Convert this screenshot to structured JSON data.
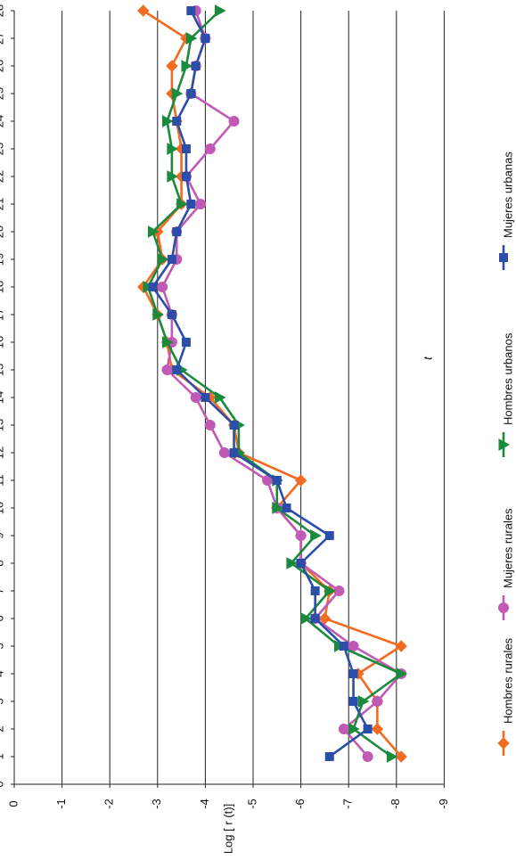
{
  "chart_data": {
    "type": "line",
    "xlabel": "t",
    "ylabel": "Log [ r (t)]",
    "x": [
      1,
      2,
      3,
      4,
      5,
      6,
      7,
      8,
      9,
      10,
      11,
      12,
      13,
      14,
      15,
      16,
      17,
      18,
      19,
      20,
      21,
      22,
      23,
      24,
      25,
      26,
      27,
      28
    ],
    "xlim": [
      0,
      28
    ],
    "ylim": [
      0,
      -9
    ],
    "x_ticks": [
      0,
      1,
      2,
      3,
      4,
      5,
      6,
      7,
      8,
      9,
      10,
      11,
      12,
      13,
      14,
      15,
      16,
      17,
      18,
      19,
      20,
      21,
      22,
      23,
      24,
      25,
      26,
      27,
      28
    ],
    "y_ticks": [
      0,
      -1,
      -2,
      -3,
      -4,
      -5,
      -6,
      -7,
      -8,
      -9
    ],
    "y_tick_labels": [
      "0",
      "-1",
      "-2",
      "-3",
      "-4",
      "-5",
      "-6",
      "-7",
      "-8",
      "-9"
    ],
    "grid": "horizontal at each y tick",
    "legend_position": "bottom",
    "series": [
      {
        "name": "Hombres rurales",
        "color": "#f26b21",
        "marker": "diamond",
        "values": [
          -8.1,
          -7.6,
          -7.6,
          -7.2,
          -8.1,
          -6.5,
          -6.6,
          -6.0,
          -6.0,
          -5.5,
          -6.0,
          -4.7,
          -4.6,
          -4.1,
          -3.3,
          -3.2,
          -3.0,
          -2.7,
          -3.1,
          -3.0,
          -3.5,
          -3.5,
          -3.5,
          -3.4,
          -3.3,
          -3.3,
          -3.6,
          -2.7
        ]
      },
      {
        "name": "Mujeres rurales",
        "color": "#c05ab4",
        "marker": "circle",
        "values": [
          -7.4,
          -6.9,
          -7.6,
          -8.1,
          -7.1,
          -6.3,
          -6.8,
          -6.0,
          -6.0,
          -5.5,
          -5.3,
          -4.4,
          -4.1,
          -3.8,
          -3.2,
          -3.3,
          -3.3,
          -3.1,
          -3.4,
          -3.4,
          -3.9,
          -3.6,
          -4.1,
          -4.6,
          -3.7,
          -3.8,
          -4.0,
          -3.8
        ]
      },
      {
        "name": "Hombres urbanos",
        "color": "#1a8a3c",
        "marker": "triangle",
        "values": [
          -7.9,
          -7.1,
          -7.3,
          -8.1,
          -6.8,
          -6.1,
          -6.6,
          -5.8,
          -6.3,
          -5.5,
          -5.5,
          -4.7,
          -4.7,
          -4.3,
          -3.5,
          -3.2,
          -3.0,
          -2.8,
          -3.1,
          -2.9,
          -3.5,
          -3.3,
          -3.3,
          -3.2,
          -3.4,
          -3.6,
          -3.7,
          -4.3
        ]
      },
      {
        "name": "Mujeres urbanas",
        "color": "#2b4ea8",
        "marker": "square",
        "values": [
          -6.6,
          -7.4,
          -7.1,
          -7.1,
          -6.9,
          -6.3,
          -6.3,
          -6.0,
          -6.6,
          -5.7,
          -5.5,
          -4.6,
          -4.6,
          -4.0,
          -3.4,
          -3.6,
          -3.3,
          -2.9,
          -3.3,
          -3.4,
          -3.7,
          -3.6,
          -3.6,
          -3.4,
          -3.7,
          -3.8,
          -4.0,
          -3.7
        ]
      }
    ]
  }
}
